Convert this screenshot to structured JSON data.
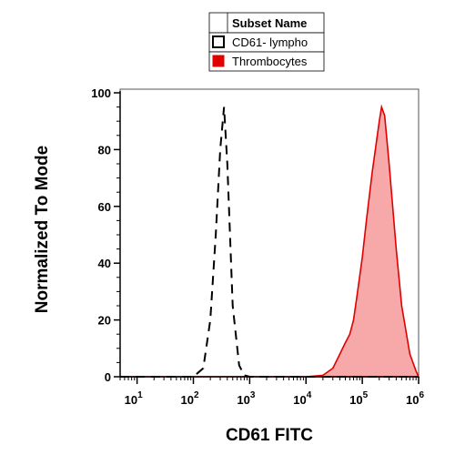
{
  "chart_data": {
    "type": "area",
    "xlabel": "CD61 FITC",
    "ylabel": "Normalized To Mode",
    "xscale": "log",
    "xlim": [
      5,
      1000000
    ],
    "ylim": [
      0,
      100
    ],
    "x_ticks": [
      {
        "base": "10",
        "exp": "1",
        "value": 10
      },
      {
        "base": "10",
        "exp": "2",
        "value": 100
      },
      {
        "base": "10",
        "exp": "3",
        "value": 1000
      },
      {
        "base": "10",
        "exp": "4",
        "value": 10000
      },
      {
        "base": "10",
        "exp": "5",
        "value": 100000
      },
      {
        "base": "10",
        "exp": "6",
        "value": 1000000
      }
    ],
    "y_ticks": [
      "0",
      "20",
      "40",
      "60",
      "80",
      "100"
    ],
    "grid": false,
    "legend": {
      "placement": "top",
      "header": "Subset Name",
      "entries": [
        "CD61- lympho",
        "Thrombocytes"
      ]
    },
    "series": [
      {
        "name": "CD61- lympho",
        "style": "dashed",
        "color": "#000000",
        "fill": "none",
        "x": [
          5,
          100,
          150,
          200,
          250,
          300,
          350,
          400,
          500,
          650,
          800,
          1000,
          2000,
          10000,
          1000000
        ],
        "y": [
          0,
          0,
          3,
          20,
          50,
          80,
          95,
          75,
          25,
          4,
          0.5,
          0,
          0,
          0,
          0
        ]
      },
      {
        "name": "Thrombocytes",
        "style": "solid",
        "color": "#e00000",
        "fill": "#f6a0a0",
        "x": [
          5,
          10000,
          20000,
          30000,
          40000,
          50000,
          60000,
          70000,
          80000,
          100000,
          120000,
          150000,
          200000,
          220000,
          250000,
          300000,
          400000,
          500000,
          700000,
          900000,
          1000000
        ],
        "y": [
          0,
          0,
          0.5,
          3,
          8,
          12,
          15,
          20,
          28,
          42,
          56,
          72,
          90,
          95,
          92,
          75,
          45,
          25,
          8,
          2,
          0
        ]
      }
    ]
  }
}
